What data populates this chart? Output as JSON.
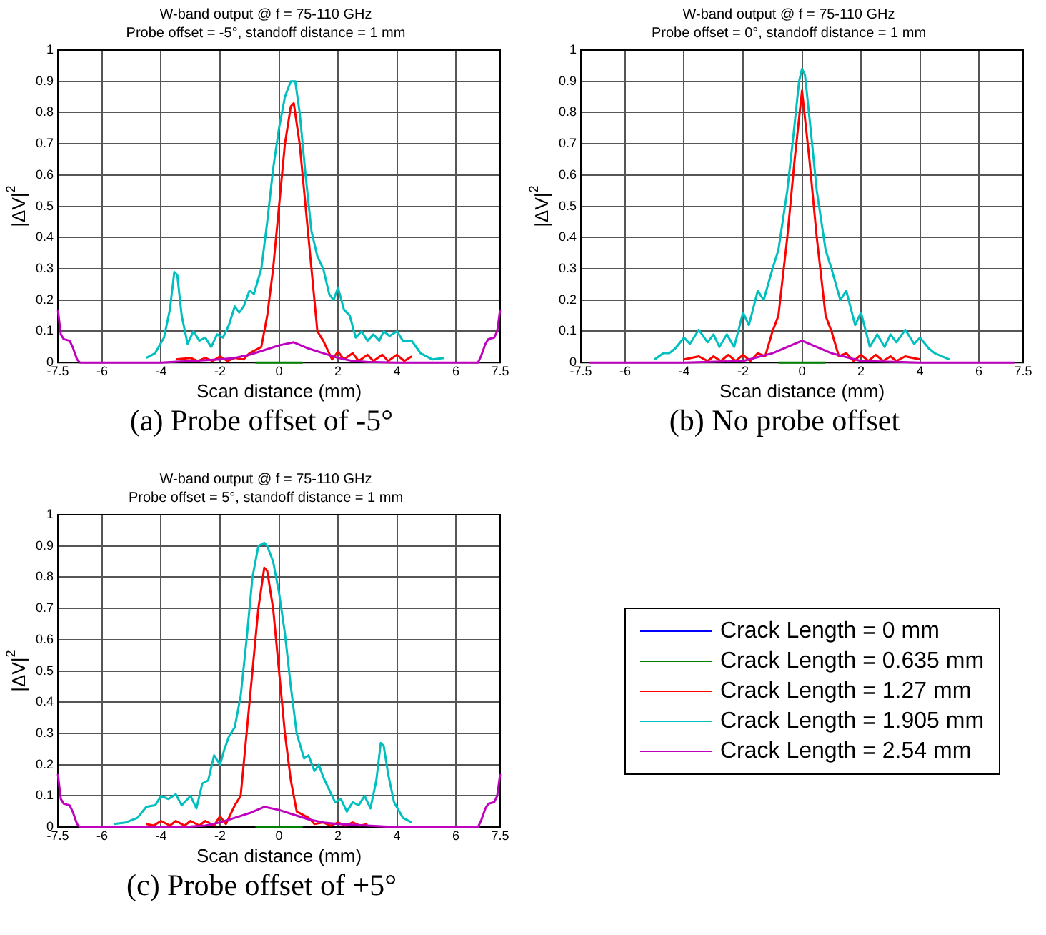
{
  "chart_data": [
    {
      "type": "line",
      "title": "W-band output @ f = 75-110 GHz",
      "subtitle": "Probe offset = -5°, standoff distance = 1 mm",
      "xlabel": "Scan distance (mm)",
      "ylabel": "|ΔV|$^{2}$",
      "annotations": [
        "(a) Probe offset of -5°"
      ],
      "xlim": [
        -7.5,
        7.5
      ],
      "ylim": [
        0,
        1
      ],
      "xticks": [
        -7.5,
        -6,
        -4,
        -2,
        0,
        2,
        4,
        6,
        7.5
      ],
      "yticks": [
        0,
        0.1,
        0.2,
        0.3,
        0.4,
        0.5,
        0.6,
        0.7,
        0.8,
        0.9,
        1
      ],
      "grid": true,
      "series": [
        {
          "color": "#0000ff",
          "values": [
            null
          ]
        },
        {
          "color": "#008000",
          "x": [
            -0.8,
            0.8
          ],
          "values": [
            0,
            0
          ]
        },
        {
          "color": "#ff0000",
          "x": [
            -3.5,
            -3,
            -2.75,
            -2.5,
            -2.25,
            -2,
            -1.75,
            -1.5,
            -1.2,
            -1,
            -0.6,
            -0.4,
            -0.2,
            0,
            0.2,
            0.4,
            0.5,
            0.7,
            0.9,
            1.1,
            1.3,
            1.5,
            1.7,
            1.8,
            2.0,
            2.2,
            2.5,
            2.7,
            3.0,
            3.2,
            3.5,
            3.7,
            4.0,
            4.25,
            4.5
          ],
          "values": [
            0.01,
            0.015,
            0.005,
            0.015,
            0.005,
            0.02,
            0.005,
            0.015,
            0.01,
            0.03,
            0.05,
            0.15,
            0.3,
            0.5,
            0.7,
            0.82,
            0.83,
            0.7,
            0.5,
            0.3,
            0.1,
            0.07,
            0.03,
            0.01,
            0.035,
            0.01,
            0.03,
            0.005,
            0.025,
            0.005,
            0.025,
            0.005,
            0.025,
            0.005,
            0.02
          ]
        },
        {
          "color": "#00bfbf",
          "x": [
            -4.5,
            -4.2,
            -3.9,
            -3.7,
            -3.55,
            -3.45,
            -3.3,
            -3.1,
            -2.9,
            -2.7,
            -2.5,
            -2.3,
            -2.1,
            -1.9,
            -1.7,
            -1.5,
            -1.35,
            -1.2,
            -1.0,
            -0.85,
            -0.6,
            -0.4,
            -0.2,
            0,
            0.2,
            0.4,
            0.55,
            0.7,
            0.9,
            1.1,
            1.3,
            1.5,
            1.7,
            1.85,
            2.0,
            2.2,
            2.4,
            2.6,
            2.8,
            3.0,
            3.2,
            3.4,
            3.55,
            3.75,
            4.0,
            4.2,
            4.5,
            4.8,
            5.2,
            5.6
          ],
          "values": [
            0.015,
            0.03,
            0.08,
            0.17,
            0.29,
            0.28,
            0.15,
            0.06,
            0.1,
            0.07,
            0.08,
            0.05,
            0.09,
            0.08,
            0.12,
            0.18,
            0.16,
            0.18,
            0.23,
            0.22,
            0.3,
            0.45,
            0.62,
            0.75,
            0.85,
            0.9,
            0.9,
            0.8,
            0.6,
            0.42,
            0.34,
            0.3,
            0.22,
            0.2,
            0.24,
            0.17,
            0.15,
            0.08,
            0.1,
            0.07,
            0.09,
            0.07,
            0.1,
            0.085,
            0.1,
            0.07,
            0.07,
            0.03,
            0.01,
            0.015
          ]
        },
        {
          "color": "#bf00bf",
          "x": [
            -7.5,
            -7.4,
            -7.3,
            -7.1,
            -7.0,
            -6.85,
            -6.75,
            -4,
            -3,
            -2,
            -1.5,
            -1,
            -0.5,
            0,
            0.5,
            1,
            1.5,
            2,
            2.5,
            3,
            4,
            6.75,
            6.85,
            7.0,
            7.1,
            7.3,
            7.4,
            7.5
          ],
          "values": [
            0.17,
            0.09,
            0.075,
            0.07,
            0.05,
            0.01,
            0,
            0,
            0.005,
            0.01,
            0.015,
            0.025,
            0.04,
            0.055,
            0.065,
            0.045,
            0.03,
            0.015,
            0.005,
            0.002,
            0,
            0,
            0.02,
            0.06,
            0.075,
            0.08,
            0.1,
            0.17
          ]
        }
      ]
    },
    {
      "type": "line",
      "title": "W-band output @ f = 75-110 GHz",
      "subtitle": "Probe offset = 0°, standoff distance = 1 mm",
      "xlabel": "Scan distance (mm)",
      "ylabel": "|ΔV|$^{2}$",
      "annotations": [
        "(b) No probe offset"
      ],
      "xlim": [
        -7.5,
        7.5
      ],
      "ylim": [
        0,
        1
      ],
      "xticks": [
        -7.5,
        -6,
        -4,
        -2,
        0,
        2,
        4,
        6,
        7.5
      ],
      "yticks": [
        0,
        0.1,
        0.2,
        0.3,
        0.4,
        0.5,
        0.6,
        0.7,
        0.8,
        0.9,
        1
      ],
      "grid": true,
      "series": [
        {
          "color": "#0000ff",
          "values": [
            null
          ]
        },
        {
          "color": "#008000",
          "x": [
            -0.8,
            0.8
          ],
          "values": [
            0,
            0
          ]
        },
        {
          "color": "#ff0000",
          "x": [
            -4,
            -3.5,
            -3.2,
            -3,
            -2.75,
            -2.5,
            -2.25,
            -2,
            -1.75,
            -1.5,
            -1.25,
            -1,
            -0.8,
            -0.5,
            -0.25,
            0,
            0.25,
            0.5,
            0.8,
            1,
            1.25,
            1.5,
            1.75,
            2,
            2.25,
            2.5,
            2.75,
            3,
            3.2,
            3.5,
            4
          ],
          "values": [
            0.01,
            0.02,
            0.005,
            0.02,
            0.005,
            0.025,
            0.005,
            0.025,
            0.005,
            0.03,
            0.02,
            0.1,
            0.15,
            0.4,
            0.65,
            0.87,
            0.65,
            0.4,
            0.15,
            0.1,
            0.02,
            0.03,
            0.005,
            0.025,
            0.005,
            0.025,
            0.005,
            0.02,
            0.005,
            0.02,
            0.01
          ]
        },
        {
          "color": "#00bfbf",
          "x": [
            -5,
            -4.7,
            -4.5,
            -4.3,
            -4.0,
            -3.8,
            -3.5,
            -3.2,
            -3.0,
            -2.8,
            -2.55,
            -2.3,
            -2.0,
            -1.8,
            -1.5,
            -1.3,
            -1.0,
            -0.8,
            -0.5,
            -0.3,
            -0.1,
            0,
            0.1,
            0.3,
            0.5,
            0.8,
            1.0,
            1.3,
            1.5,
            1.8,
            2.0,
            2.3,
            2.55,
            2.8,
            3.0,
            3.2,
            3.5,
            3.8,
            4.0,
            4.3,
            4.5,
            5
          ],
          "values": [
            0.01,
            0.03,
            0.03,
            0.045,
            0.08,
            0.06,
            0.105,
            0.065,
            0.09,
            0.05,
            0.09,
            0.05,
            0.16,
            0.12,
            0.23,
            0.2,
            0.3,
            0.36,
            0.55,
            0.72,
            0.9,
            0.94,
            0.92,
            0.74,
            0.55,
            0.36,
            0.3,
            0.2,
            0.23,
            0.12,
            0.16,
            0.05,
            0.09,
            0.05,
            0.09,
            0.065,
            0.105,
            0.06,
            0.08,
            0.045,
            0.03,
            0.01
          ]
        },
        {
          "color": "#bf00bf",
          "x": [
            -7.2,
            -4,
            -2,
            -1,
            -0.5,
            0,
            0.5,
            1,
            2,
            4,
            7.2
          ],
          "values": [
            0,
            0,
            0.005,
            0.03,
            0.05,
            0.07,
            0.05,
            0.03,
            0.005,
            0,
            0
          ]
        }
      ]
    },
    {
      "type": "line",
      "title": "W-band output @ f = 75-110 GHz",
      "subtitle": "Probe offset = 5°, standoff distance = 1 mm",
      "xlabel": "Scan distance (mm)",
      "ylabel": "|ΔV|$^{2}$",
      "annotations": [
        "(c) Probe offset of +5°"
      ],
      "xlim": [
        -7.5,
        7.5
      ],
      "ylim": [
        0,
        1
      ],
      "xticks": [
        -7.5,
        -6,
        -4,
        -2,
        0,
        2,
        4,
        6,
        7.5
      ],
      "yticks": [
        0,
        0.1,
        0.2,
        0.3,
        0.4,
        0.5,
        0.6,
        0.7,
        0.8,
        0.9,
        1
      ],
      "grid": true,
      "legend": "right",
      "series": [
        {
          "name": "Crack Length = 0 mm",
          "color": "#0000ff",
          "values": [
            null
          ]
        },
        {
          "name": "Crack Length = 0.635 mm",
          "color": "#008000",
          "x": [
            -0.8,
            0.8
          ],
          "values": [
            0,
            0
          ]
        },
        {
          "name": "Crack Length = 1.27 mm",
          "color": "#ff0000",
          "x": [
            -4.5,
            -4.25,
            -4.0,
            -3.7,
            -3.5,
            -3.2,
            -3.0,
            -2.7,
            -2.5,
            -2.2,
            -2.0,
            -1.8,
            -1.7,
            -1.5,
            -1.3,
            -1.1,
            -0.9,
            -0.7,
            -0.5,
            -0.4,
            -0.2,
            0,
            0.2,
            0.4,
            0.6,
            1,
            1.2,
            1.5,
            1.75,
            2,
            2.25,
            2.5,
            2.75,
            3
          ],
          "values": [
            0.01,
            0.005,
            0.02,
            0.005,
            0.02,
            0.005,
            0.02,
            0.005,
            0.02,
            0.005,
            0.035,
            0.01,
            0.03,
            0.07,
            0.1,
            0.3,
            0.5,
            0.7,
            0.83,
            0.82,
            0.7,
            0.5,
            0.3,
            0.15,
            0.05,
            0.03,
            0.01,
            0.015,
            0.005,
            0.015,
            0.005,
            0.015,
            0.005,
            0.01
          ]
        },
        {
          "name": "Crack Length = 1.905 mm",
          "color": "#00bfbf",
          "x": [
            -5.6,
            -5.2,
            -4.8,
            -4.5,
            -4.2,
            -4.0,
            -3.75,
            -3.5,
            -3.3,
            -3.0,
            -2.8,
            -2.6,
            -2.4,
            -2.2,
            -2.0,
            -1.85,
            -1.7,
            -1.5,
            -1.3,
            -1.1,
            -0.9,
            -0.7,
            -0.5,
            -0.4,
            -0.2,
            0,
            0.2,
            0.4,
            0.6,
            0.85,
            1.0,
            1.2,
            1.35,
            1.5,
            1.7,
            1.9,
            2.1,
            2.3,
            2.5,
            2.7,
            2.9,
            3.1,
            3.3,
            3.45,
            3.55,
            3.7,
            3.9,
            4.2,
            4.5
          ],
          "values": [
            0.01,
            0.015,
            0.03,
            0.065,
            0.07,
            0.1,
            0.09,
            0.105,
            0.07,
            0.1,
            0.06,
            0.14,
            0.15,
            0.23,
            0.2,
            0.25,
            0.29,
            0.32,
            0.42,
            0.6,
            0.8,
            0.9,
            0.91,
            0.9,
            0.85,
            0.75,
            0.62,
            0.45,
            0.3,
            0.22,
            0.23,
            0.18,
            0.2,
            0.16,
            0.12,
            0.08,
            0.09,
            0.05,
            0.08,
            0.07,
            0.1,
            0.06,
            0.15,
            0.27,
            0.26,
            0.17,
            0.08,
            0.03,
            0.015
          ]
        },
        {
          "name": "Crack Length = 2.54 mm",
          "color": "#bf00bf",
          "x": [
            -7.5,
            -7.4,
            -7.3,
            -7.1,
            -7.0,
            -6.85,
            -6.75,
            -4,
            -3,
            -2.5,
            -2,
            -1.5,
            -1,
            -0.5,
            0,
            0.5,
            1,
            1.5,
            2,
            3,
            4,
            6.75,
            6.85,
            7.0,
            7.1,
            7.3,
            7.4,
            7.5
          ],
          "values": [
            0.17,
            0.09,
            0.075,
            0.07,
            0.05,
            0.01,
            0,
            0,
            0.002,
            0.005,
            0.015,
            0.03,
            0.045,
            0.065,
            0.055,
            0.04,
            0.025,
            0.015,
            0.01,
            0.005,
            0,
            0,
            0.02,
            0.06,
            0.075,
            0.08,
            0.1,
            0.17
          ]
        }
      ]
    }
  ]
}
